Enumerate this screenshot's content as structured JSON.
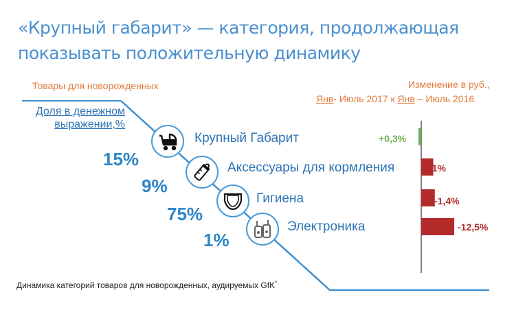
{
  "title_line1": "«Крупный габарит» — категория, продолжающая",
  "title_line2": "показывать положительную динамику",
  "left_heading": "Товары для новорожденных",
  "right_heading_line1": "Изменение в руб.,",
  "right_heading_line2_a": "Янв",
  "right_heading_line2_b": "- Июль 2017 к ",
  "right_heading_line2_c": "Янв",
  "right_heading_line2_d": " – Июль 2016",
  "share_heading_line1": "Доля в денежном",
  "share_heading_line2": "выражении,%",
  "footer": "Динамика категорий товаров для новорожденных, аудируемых GfK",
  "footer_mark": "*",
  "colors": {
    "blue": "#2e86c8",
    "orange": "#e07a3a",
    "green": "#6ab04c",
    "red": "#b22a2a"
  },
  "icons": [
    "stroller-icon",
    "baby-bottle-icon",
    "diaper-icon",
    "baby-monitor-icon"
  ],
  "chart_data": {
    "type": "bar",
    "categories": [
      "Крупный Габарит",
      "Аксессуары для кормления",
      "Гигиена",
      "Электроника"
    ],
    "share_labels": [
      "15%",
      "9%",
      "75%",
      "1%"
    ],
    "share_values": [
      15,
      9,
      75,
      1
    ],
    "change_values": [
      0.3,
      -1,
      -1.4,
      -12.5
    ],
    "change_labels": [
      "+0,3%",
      "-1%",
      "-1,4%",
      "-12,5%"
    ]
  }
}
